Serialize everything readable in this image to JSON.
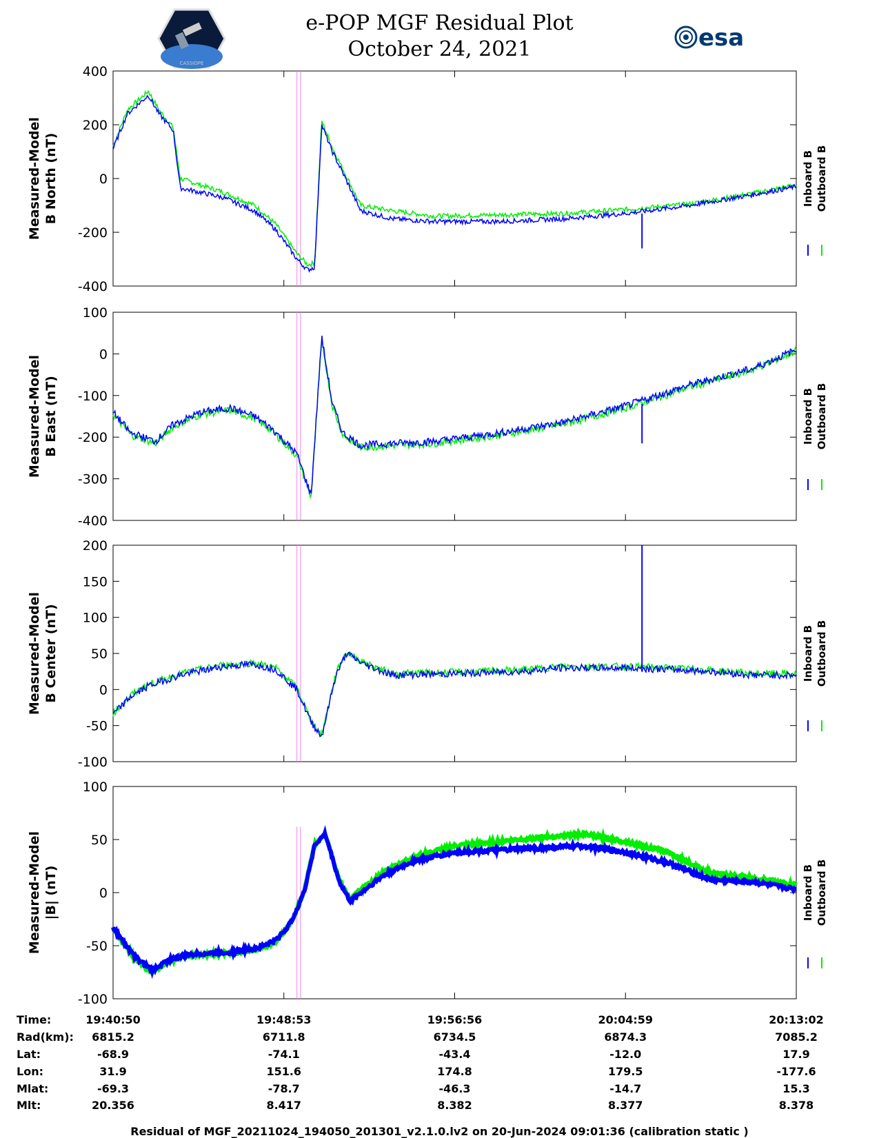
{
  "header": {
    "title_line1": "e-POP MGF Residual Plot",
    "title_line2": "October 24, 2021",
    "logo_left_caption": "CASSIOPE",
    "logo_right_text": "esa"
  },
  "legend": {
    "inboard": "Inboard B",
    "outboard": "Outboard B"
  },
  "colors": {
    "inboard": "#0000ff",
    "outboard": "#00ee00",
    "marker": "#ee82ee"
  },
  "chart_data": [
    {
      "type": "line",
      "ylabel_line1": "Measured-Model",
      "ylabel_line2": "B North (nT)",
      "ylim": [
        -400,
        400
      ],
      "yticks": [
        "-400",
        "-200",
        "0",
        "200",
        "400"
      ],
      "x": [
        "19:40:50",
        "19:41:30",
        "19:42:30",
        "19:43:00",
        "19:43:40",
        "19:44:00",
        "19:46:00",
        "19:47:30",
        "19:48:30",
        "19:49:30",
        "19:50:00",
        "19:50:20",
        "19:50:40",
        "19:51:10",
        "19:51:40",
        "19:52:30",
        "19:54:00",
        "19:56:00",
        "19:59:00",
        "20:02:00",
        "20:05:00",
        "20:08:00",
        "20:11:00",
        "20:13:02"
      ],
      "series": [
        {
          "name": "Inboard B",
          "values": [
            110,
            240,
            310,
            240,
            180,
            -35,
            -70,
            -120,
            -190,
            -300,
            -340,
            -330,
            200,
            100,
            20,
            -120,
            -150,
            -160,
            -160,
            -150,
            -130,
            -100,
            -60,
            -30
          ]
        },
        {
          "name": "Outboard B",
          "values": [
            120,
            255,
            325,
            255,
            190,
            0,
            -50,
            -100,
            -170,
            -280,
            -320,
            -315,
            215,
            115,
            35,
            -100,
            -120,
            -140,
            -135,
            -130,
            -115,
            -95,
            -55,
            -25
          ]
        }
      ]
    },
    {
      "type": "line",
      "ylabel_line1": "Measured-Model",
      "ylabel_line2": "B East (nT)",
      "ylim": [
        -400,
        100
      ],
      "yticks": [
        "-400",
        "-300",
        "-200",
        "-100",
        "0",
        "100"
      ],
      "x": [
        "19:40:50",
        "19:41:40",
        "19:42:50",
        "19:43:40",
        "19:45:00",
        "19:46:20",
        "19:47:30",
        "19:48:20",
        "19:49:30",
        "19:50:10",
        "19:50:40",
        "19:51:10",
        "19:51:40",
        "19:52:30",
        "19:54:00",
        "19:56:00",
        "19:59:00",
        "20:02:00",
        "20:05:00",
        "20:08:00",
        "20:11:00",
        "20:13:02"
      ],
      "series": [
        {
          "name": "Inboard B",
          "values": [
            -140,
            -190,
            -210,
            -170,
            -140,
            -130,
            -150,
            -180,
            -240,
            -340,
            40,
            -120,
            -190,
            -220,
            -215,
            -210,
            -190,
            -165,
            -125,
            -75,
            -35,
            10
          ]
        },
        {
          "name": "Outboard B",
          "values": [
            -145,
            -195,
            -215,
            -175,
            -145,
            -135,
            -155,
            -185,
            -245,
            -345,
            35,
            -125,
            -195,
            -225,
            -220,
            -215,
            -195,
            -170,
            -130,
            -80,
            -38,
            8
          ]
        }
      ]
    },
    {
      "type": "line",
      "ylabel_line1": "Measured-Model",
      "ylabel_line2": "B Center (nT)",
      "ylim": [
        -100,
        200
      ],
      "yticks": [
        "-100",
        "-50",
        "0",
        "50",
        "100",
        "150",
        "200"
      ],
      "x": [
        "19:40:50",
        "19:41:40",
        "19:42:30",
        "19:44:00",
        "19:46:00",
        "19:47:30",
        "19:48:30",
        "19:49:30",
        "19:50:10",
        "19:50:40",
        "19:51:20",
        "19:51:50",
        "19:52:40",
        "19:54:00",
        "19:57:00",
        "20:00:00",
        "20:02:00",
        "20:04:59",
        "20:07:00",
        "20:09:00",
        "20:11:00",
        "20:13:02"
      ],
      "series": [
        {
          "name": "Inboard B",
          "values": [
            -35,
            -10,
            5,
            20,
            32,
            35,
            28,
            0,
            -45,
            -65,
            20,
            50,
            35,
            20,
            22,
            25,
            30,
            30,
            28,
            25,
            20,
            20
          ]
        },
        {
          "name": "Outboard B",
          "values": [
            -33,
            -8,
            7,
            22,
            34,
            37,
            30,
            2,
            -43,
            -63,
            22,
            52,
            37,
            22,
            24,
            27,
            32,
            32,
            30,
            27,
            22,
            22
          ]
        }
      ]
    },
    {
      "type": "line",
      "ylabel_line1": "Measured-Model",
      "ylabel_line2": "|B| (nT)",
      "ylim": [
        -100,
        100
      ],
      "yticks": [
        "-100",
        "-50",
        "0",
        "50",
        "100"
      ],
      "x": [
        "19:40:50",
        "19:41:50",
        "19:42:40",
        "19:43:30",
        "19:44:30",
        "19:46:30",
        "19:47:40",
        "19:48:30",
        "19:49:10",
        "19:49:50",
        "19:50:20",
        "19:50:50",
        "19:51:30",
        "19:52:00",
        "19:53:30",
        "19:55:00",
        "19:57:00",
        "19:59:00",
        "20:01:00",
        "20:03:00",
        "20:05:00",
        "20:07:00",
        "20:09:00",
        "20:11:00",
        "20:13:02"
      ],
      "series": [
        {
          "name": "Inboard B",
          "values": [
            -33,
            -60,
            -73,
            -63,
            -58,
            -56,
            -52,
            -45,
            -30,
            0,
            45,
            55,
            10,
            -8,
            15,
            30,
            38,
            40,
            42,
            44,
            38,
            28,
            12,
            10,
            3
          ]
        },
        {
          "name": "Outboard B",
          "values": [
            -34,
            -61,
            -75,
            -64,
            -59,
            -57,
            -53,
            -46,
            -30,
            0,
            45,
            56,
            12,
            -6,
            18,
            34,
            44,
            48,
            52,
            55,
            48,
            38,
            18,
            14,
            7
          ]
        }
      ]
    }
  ],
  "x_ticks": [
    "19:40:50",
    "19:48:53",
    "19:56:56",
    "20:04:59",
    "20:13:02"
  ],
  "markers": [
    "19:49:30",
    "19:49:40"
  ],
  "orbit_table": {
    "rows": [
      {
        "label": "Time:",
        "values": [
          "19:40:50",
          "19:48:53",
          "19:56:56",
          "20:04:59",
          "20:13:02"
        ]
      },
      {
        "label": "Rad(km):",
        "values": [
          "6815.2",
          "6711.8",
          "6734.5",
          "6874.3",
          "7085.2"
        ]
      },
      {
        "label": "Lat:",
        "values": [
          "-68.9",
          "-74.1",
          "-43.4",
          "-12.0",
          "17.9"
        ]
      },
      {
        "label": "Lon:",
        "values": [
          "31.9",
          "151.6",
          "174.8",
          "179.5",
          "-177.6"
        ]
      },
      {
        "label": "Mlat:",
        "values": [
          "-69.3",
          "-78.7",
          "-46.3",
          "-14.7",
          "15.3"
        ]
      },
      {
        "label": "Mlt:",
        "values": [
          "20.356",
          "8.417",
          "8.382",
          "8.377",
          "8.378"
        ]
      }
    ]
  },
  "footer": "Residual of MGF_20211024_194050_201301_v2.1.0.lv2 on 20-Jun-2024 09:01:36 (calibration static )"
}
